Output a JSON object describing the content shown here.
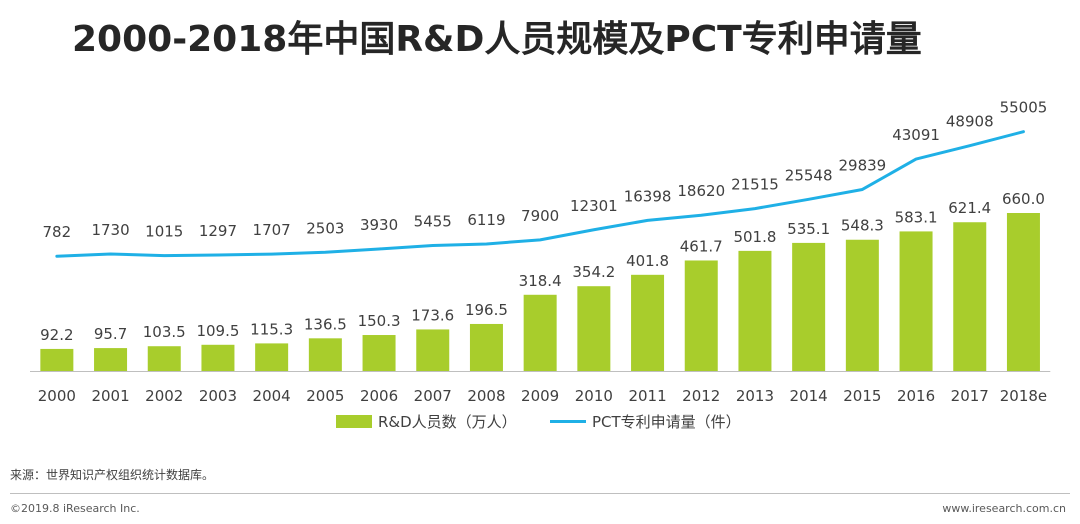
{
  "title": "2000-2018年中国R&D人员规模及PCT专利申请量",
  "chart_data": {
    "type": "bar",
    "categories": [
      "2000",
      "2001",
      "2002",
      "2003",
      "2004",
      "2005",
      "2006",
      "2007",
      "2008",
      "2009",
      "2010",
      "2011",
      "2012",
      "2013",
      "2014",
      "2015",
      "2016",
      "2017",
      "2018e"
    ],
    "series": [
      {
        "name": "R&D人员数（万人）",
        "type": "bar",
        "values": [
          92.2,
          95.7,
          103.5,
          109.5,
          115.3,
          136.5,
          150.3,
          173.6,
          196.5,
          318.4,
          354.2,
          401.8,
          461.7,
          501.8,
          535.1,
          548.3,
          583.1,
          621.4,
          660.0
        ],
        "labels": [
          "92.2",
          "95.7",
          "103.5",
          "109.5",
          "115.3",
          "136.5",
          "150.3",
          "173.6",
          "196.5",
          "318.4",
          "354.2",
          "401.8",
          "461.7",
          "501.8",
          "535.1",
          "548.3",
          "583.1",
          "621.4",
          "660.0"
        ],
        "color": "#a8cd2c"
      },
      {
        "name": "PCT专利申请量（件）",
        "type": "line",
        "values": [
          782,
          1730,
          1015,
          1297,
          1707,
          2503,
          3930,
          5455,
          6119,
          7900,
          12301,
          16398,
          18620,
          21515,
          25548,
          29839,
          43091,
          48908,
          55005
        ],
        "color": "#1fb0e6"
      }
    ],
    "legend_position": "bottom",
    "grid": false
  },
  "source": "来源：世界知识产权组织统计数据库。",
  "copyright": "©2019.8 iResearch Inc.",
  "website": "www.iresearch.com.cn"
}
